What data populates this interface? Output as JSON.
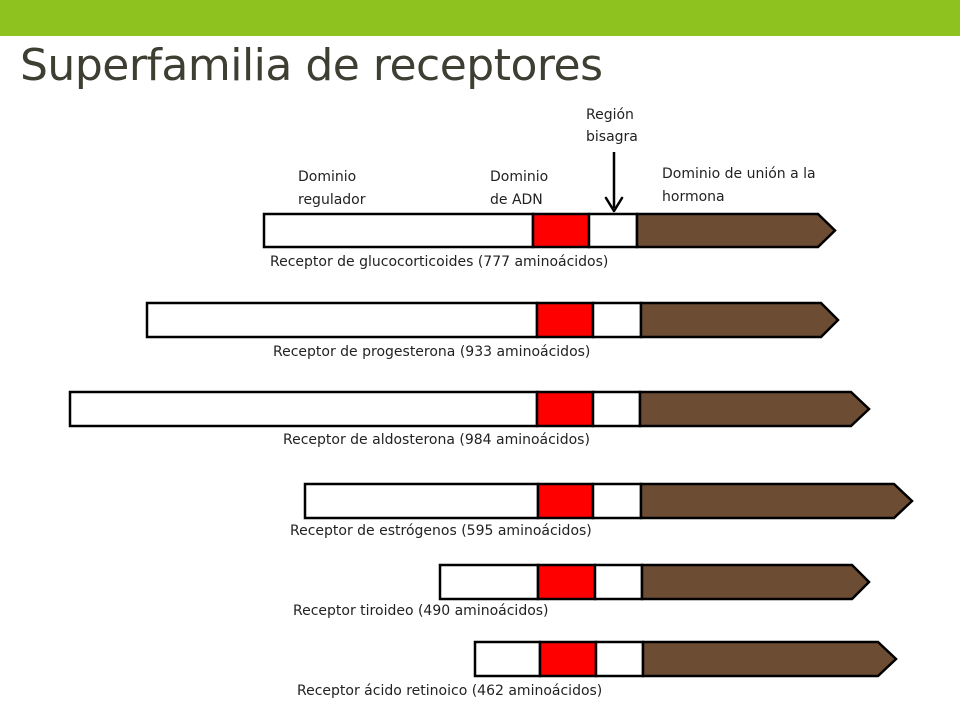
{
  "header": {
    "title": "Superfamilia de receptores"
  },
  "colors": {
    "accent_bar": "#8dc21f",
    "regulatory_domain": "#ffffff",
    "dna_domain": "#ff0000",
    "hinge_region": "#ffffff",
    "hormone_domain": "#6d4c34",
    "outline": "#000000"
  },
  "labels": {
    "regulatory_line1": "Dominio",
    "regulatory_line2": "regulador",
    "dna_line1": "Dominio",
    "dna_line2": "de ADN",
    "hinge_line1": "Región",
    "hinge_line2": "bisagra",
    "hormone_line1": "Dominio de unión a la",
    "hormone_line2": "hormona"
  },
  "receptors": [
    {
      "caption": "Receptor de glucocorticoides (777 aminoácidos)"
    },
    {
      "caption": "Receptor de progesterona (933 aminoácidos)"
    },
    {
      "caption": "Receptor de aldosterona (984 aminoácidos)"
    },
    {
      "caption": "Receptor de estrógenos (595 aminoácidos)"
    },
    {
      "caption": "Receptor tiroideo (490 aminoácidos)"
    },
    {
      "caption": "Receptor ácido retinoico (462 aminoácidos)"
    }
  ]
}
